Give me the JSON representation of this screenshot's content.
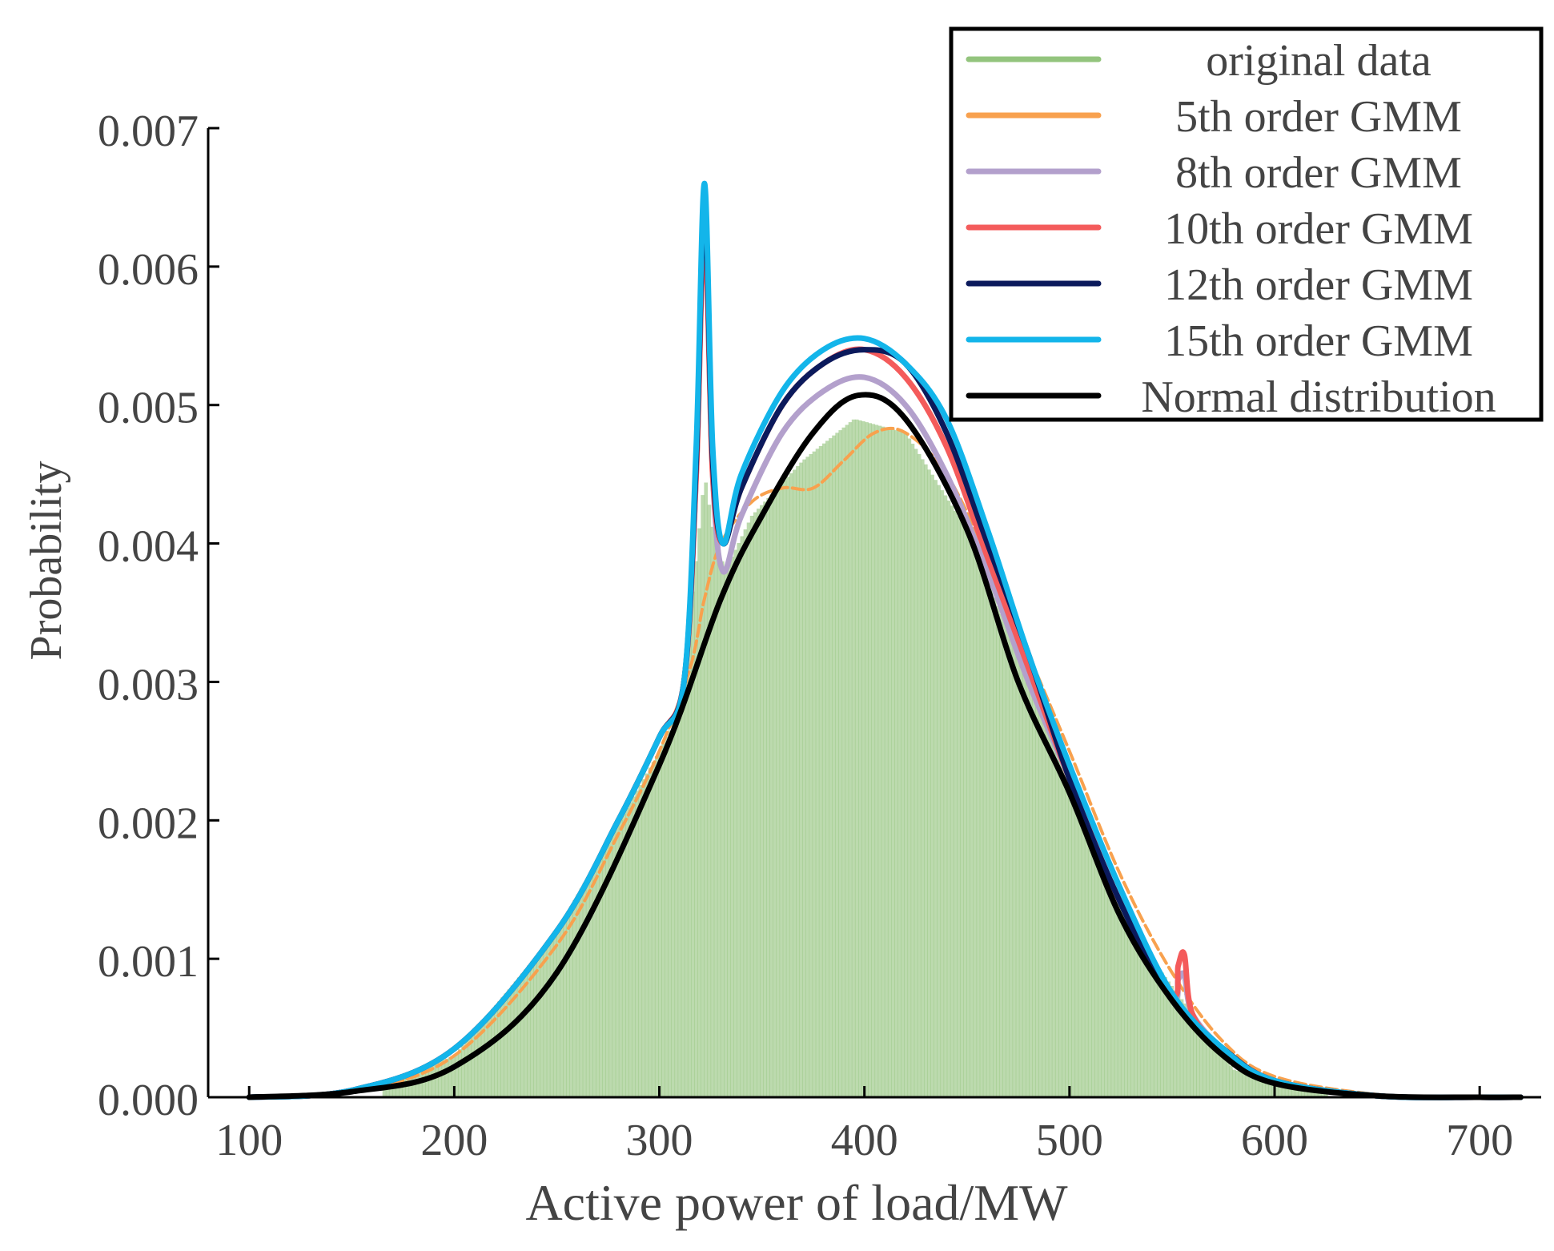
{
  "chart_data": {
    "type": "line",
    "title": "",
    "xlabel": "Active power of load/MW",
    "ylabel": "Probability",
    "xlim": [
      80,
      730
    ],
    "ylim": [
      0,
      0.007
    ],
    "xticks": [
      100,
      200,
      300,
      400,
      500,
      600,
      700
    ],
    "xtick_labels": [
      "100",
      "200",
      "300",
      "400",
      "500",
      "600",
      "700"
    ],
    "yticks": [
      0,
      0.001,
      0.002,
      0.003,
      0.004,
      0.005,
      0.006,
      0.007
    ],
    "ytick_labels": [
      "0.000",
      "0.001",
      "0.002",
      "0.003",
      "0.004",
      "0.005",
      "0.006",
      "0.007"
    ],
    "legend_position": "top-right",
    "histogram": {
      "name": "original data",
      "color": "#93c47d",
      "range": [
        165,
        625
      ],
      "note": "dense histogram of load samples, approximated as the envelope below",
      "envelope": {
        "x": [
          165,
          200,
          250,
          300,
          310,
          318,
          322,
          326,
          332,
          345,
          370,
          395,
          420,
          450,
          480,
          510,
          540,
          555,
          560,
          580,
          600,
          625
        ],
        "y": [
          0.0001,
          0.0003,
          0.0012,
          0.0025,
          0.0028,
          0.0039,
          0.0045,
          0.0041,
          0.0038,
          0.0042,
          0.0046,
          0.0049,
          0.0048,
          0.0041,
          0.003,
          0.0019,
          0.001,
          0.0007,
          0.0006,
          0.0002,
          0.0001,
          2e-05
        ]
      }
    },
    "series": [
      {
        "name": "5th order GMM",
        "color": "#f8a14e",
        "x": [
          100,
          150,
          200,
          250,
          280,
          300,
          315,
          322,
          330,
          345,
          360,
          375,
          390,
          405,
          420,
          440,
          460,
          480,
          500,
          525,
          550,
          575,
          600,
          650,
          700,
          720
        ],
        "y": [
          0.0,
          4e-05,
          0.0003,
          0.0011,
          0.0019,
          0.0025,
          0.0031,
          0.0036,
          0.004,
          0.0043,
          0.0044,
          0.0044,
          0.0046,
          0.0048,
          0.0048,
          0.0045,
          0.0039,
          0.0032,
          0.0025,
          0.0016,
          0.0009,
          0.0004,
          0.00015,
          2e-05,
          0.0,
          0.0
        ]
      },
      {
        "name": "8th order GMM",
        "color": "#b3a0cc",
        "x": [
          100,
          150,
          200,
          250,
          280,
          300,
          312,
          318,
          322,
          326,
          331,
          340,
          360,
          380,
          400,
          420,
          440,
          460,
          480,
          500,
          525,
          550,
          553,
          556,
          560,
          575,
          600,
          650,
          700,
          720
        ],
        "y": [
          0.0,
          5e-05,
          0.00035,
          0.0012,
          0.002,
          0.0026,
          0.003,
          0.0045,
          0.0064,
          0.0045,
          0.0038,
          0.0042,
          0.0048,
          0.0051,
          0.0052,
          0.005,
          0.0045,
          0.0038,
          0.003,
          0.0023,
          0.0014,
          0.00075,
          0.00085,
          0.00088,
          0.0006,
          0.00035,
          0.00012,
          1e-05,
          0.0,
          0.0
        ]
      },
      {
        "name": "10th order GMM",
        "color": "#f45b5b",
        "x": [
          100,
          150,
          200,
          250,
          280,
          300,
          312,
          318,
          322,
          326,
          331,
          340,
          360,
          380,
          400,
          420,
          440,
          460,
          480,
          500,
          525,
          550,
          553,
          556,
          560,
          575,
          600,
          650,
          700,
          720
        ],
        "y": [
          0.0,
          5e-05,
          0.00035,
          0.0012,
          0.002,
          0.0026,
          0.003,
          0.0045,
          0.0063,
          0.0045,
          0.004,
          0.0044,
          0.005,
          0.0053,
          0.0054,
          0.0052,
          0.0047,
          0.0039,
          0.0031,
          0.0023,
          0.0014,
          0.00075,
          0.00095,
          0.00103,
          0.0006,
          0.00035,
          0.00012,
          1e-05,
          0.0,
          0.0
        ]
      },
      {
        "name": "12th order GMM",
        "color": "#0b1a5c",
        "x": [
          100,
          150,
          200,
          250,
          280,
          300,
          312,
          318,
          322,
          326,
          331,
          340,
          360,
          380,
          400,
          420,
          440,
          460,
          480,
          500,
          525,
          550,
          575,
          600,
          650,
          700,
          720
        ],
        "y": [
          0.0,
          5e-05,
          0.00035,
          0.0012,
          0.002,
          0.0026,
          0.003,
          0.0046,
          0.0065,
          0.0046,
          0.004,
          0.0044,
          0.005,
          0.0053,
          0.0054,
          0.0053,
          0.0048,
          0.004,
          0.0032,
          0.0023,
          0.0014,
          0.0007,
          0.00035,
          0.00012,
          1e-05,
          0.0,
          0.0
        ]
      },
      {
        "name": "15th order GMM",
        "color": "#13b5ea",
        "x": [
          100,
          150,
          200,
          250,
          280,
          300,
          312,
          318,
          322,
          326,
          331,
          340,
          360,
          380,
          400,
          420,
          440,
          460,
          480,
          500,
          525,
          550,
          575,
          600,
          650,
          700,
          720
        ],
        "y": [
          0.0,
          5e-05,
          0.00035,
          0.0012,
          0.002,
          0.0026,
          0.003,
          0.0047,
          0.0066,
          0.0047,
          0.004,
          0.0045,
          0.0051,
          0.0054,
          0.00548,
          0.0053,
          0.0049,
          0.0041,
          0.0032,
          0.0024,
          0.0015,
          0.00075,
          0.00035,
          0.00012,
          1e-05,
          0.0,
          0.0
        ]
      },
      {
        "name": "Normal distribution",
        "color": "#000000",
        "mu": 397,
        "sigma": 78.7,
        "x": [
          100,
          150,
          200,
          250,
          300,
          330,
          350,
          375,
          397,
          420,
          450,
          475,
          500,
          525,
          550,
          575,
          600,
          650,
          700,
          720
        ],
        "y": [
          0.0,
          4e-05,
          0.00022,
          0.0009,
          0.0024,
          0.0036,
          0.0042,
          0.0048,
          0.00507,
          0.0049,
          0.0041,
          0.003,
          0.0022,
          0.0013,
          0.0007,
          0.0003,
          0.0001,
          1e-05,
          0.0,
          0.0
        ]
      }
    ],
    "legend": [
      {
        "label": "original data",
        "color": "#93c47d"
      },
      {
        "label": "5th order GMM",
        "color": "#f8a14e"
      },
      {
        "label": "8th order GMM",
        "color": "#b3a0cc"
      },
      {
        "label": "10th order GMM",
        "color": "#f45b5b"
      },
      {
        "label": "12th order GMM",
        "color": "#0b1a5c"
      },
      {
        "label": "15th order GMM",
        "color": "#13b5ea"
      },
      {
        "label": "Normal distribution",
        "color": "#000000"
      }
    ]
  }
}
